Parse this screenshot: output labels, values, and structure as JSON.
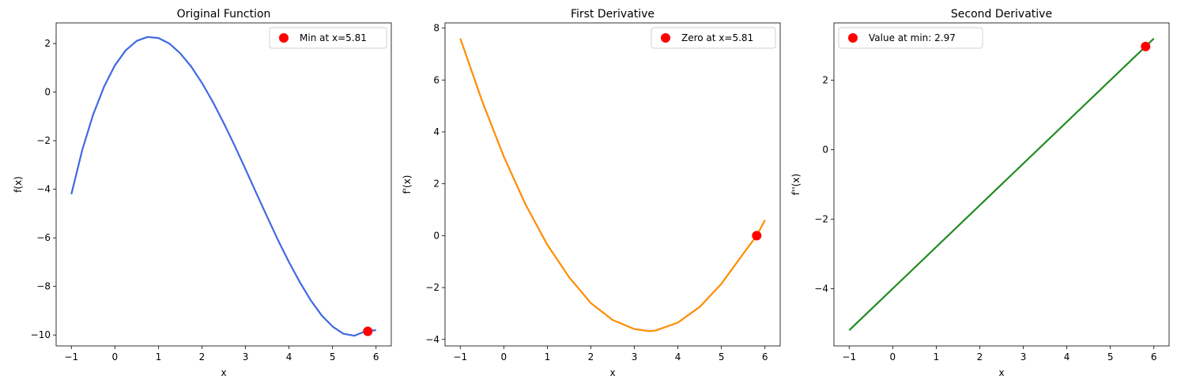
{
  "chart_data": [
    {
      "type": "line",
      "title": "Original Function",
      "xlabel": "x",
      "ylabel": "f(x)",
      "xlim": [
        -1.35,
        6.35
      ],
      "ylim": [
        -10.45,
        2.85
      ],
      "xticks": [
        -1,
        0,
        1,
        2,
        3,
        4,
        5,
        6
      ],
      "yticks": [
        -10,
        -8,
        -6,
        -4,
        -2,
        0,
        2
      ],
      "grid": false,
      "legend_position": "top-right",
      "line_color": "#4169e1",
      "series": [
        {
          "name": "",
          "x": [
            -1.0,
            -0.75,
            -0.5,
            -0.25,
            0.0,
            0.25,
            0.5,
            0.75,
            1.0,
            1.25,
            1.5,
            1.75,
            2.0,
            2.25,
            2.5,
            2.75,
            3.0,
            3.25,
            3.5,
            3.75,
            4.0,
            4.25,
            4.5,
            4.75,
            5.0,
            5.25,
            5.5,
            5.75,
            6.0
          ],
          "y": [
            -4.2,
            -2.39,
            -0.93,
            0.22,
            1.1,
            1.72,
            2.11,
            2.27,
            2.23,
            2.0,
            1.6,
            1.06,
            0.38,
            -0.4,
            -1.27,
            -2.2,
            -3.17,
            -4.16,
            -5.14,
            -6.1,
            -7.0,
            -7.83,
            -8.57,
            -9.19,
            -9.65,
            -9.95,
            -10.03,
            -9.85,
            -9.8
          ]
        }
      ],
      "marker": {
        "label": "Min at x=5.81",
        "x": 5.81,
        "y": -9.85,
        "color": "#ff0000"
      }
    },
    {
      "type": "line",
      "title": "First Derivative",
      "xlabel": "x",
      "ylabel": "f'(x)",
      "xlim": [
        -1.35,
        6.35
      ],
      "ylim": [
        -4.25,
        8.2
      ],
      "xticks": [
        -1,
        0,
        1,
        2,
        3,
        4,
        5,
        6
      ],
      "yticks": [
        -4,
        -2,
        0,
        2,
        4,
        6,
        8
      ],
      "grid": false,
      "legend_position": "top-right",
      "line_color": "#ff8c00",
      "series": [
        {
          "name": "",
          "x": [
            -1.0,
            -0.5,
            0.0,
            0.5,
            1.0,
            1.5,
            2.0,
            2.5,
            3.0,
            3.35,
            3.5,
            4.0,
            4.5,
            5.0,
            5.5,
            5.81,
            6.0
          ],
          "y": [
            7.6,
            5.2,
            3.05,
            1.2,
            -0.35,
            -1.6,
            -2.6,
            -3.25,
            -3.6,
            -3.68,
            -3.65,
            -3.35,
            -2.75,
            -1.85,
            -0.7,
            0.0,
            0.6
          ]
        }
      ],
      "marker": {
        "label": "Zero at x=5.81",
        "x": 5.81,
        "y": 0.0,
        "color": "#ff0000"
      }
    },
    {
      "type": "line",
      "title": "Second Derivative",
      "xlabel": "x",
      "ylabel": "f''(x)",
      "xlim": [
        -1.35,
        6.35
      ],
      "ylim": [
        -5.65,
        3.65
      ],
      "xticks": [
        -1,
        0,
        1,
        2,
        3,
        4,
        5,
        6
      ],
      "yticks": [
        -4,
        -2,
        0,
        2
      ],
      "grid": false,
      "legend_position": "top-left",
      "line_color": "#228b22",
      "series": [
        {
          "name": "",
          "x": [
            -1.0,
            6.0
          ],
          "y": [
            -5.2,
            3.2
          ]
        }
      ],
      "marker": {
        "label": "Value at min: 2.97",
        "x": 5.81,
        "y": 2.97,
        "color": "#ff0000"
      }
    }
  ]
}
